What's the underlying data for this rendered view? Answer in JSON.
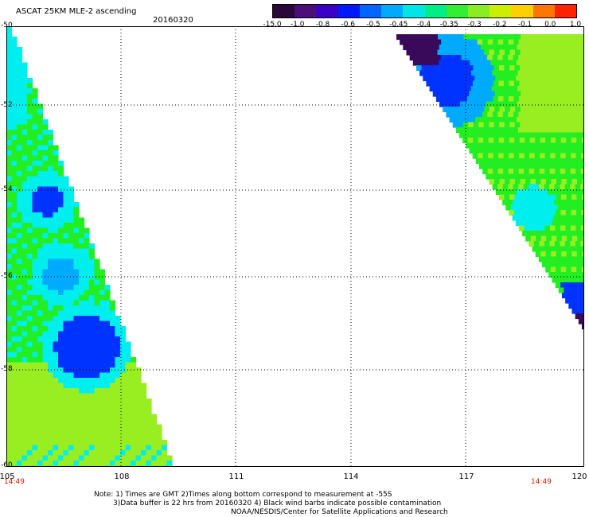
{
  "header": {
    "title": "ASCAT 25KM MLE-2 ascending",
    "date": "20160320"
  },
  "colorbar": {
    "labels": [
      "-15.0",
      "-1.0",
      "-0.8",
      "-0.6",
      "-0.5",
      "-0.45",
      "-0.4",
      "-0.35",
      "-0.3",
      "-0.2",
      "-0.1",
      "0.0",
      "1.0"
    ],
    "colors": [
      "#2a0838",
      "#4b0f7a",
      "#3a00c8",
      "#0018ff",
      "#0066ff",
      "#00aaff",
      "#00e6e6",
      "#00ee88",
      "#33ee33",
      "#88ee22",
      "#ccee00",
      "#ffd000",
      "#ff7700",
      "#ff2200"
    ]
  },
  "axes": {
    "y_labels": [
      "-50",
      "-52",
      "-54",
      "-56",
      "-58",
      "-60"
    ],
    "x_labels": [
      "105",
      "108",
      "111",
      "114",
      "117",
      "120"
    ],
    "time_left": "14:49",
    "time_right": "14:49"
  },
  "swath_colors": {
    "green": "#22ee22",
    "yellowgreen": "#99ee22",
    "cyan": "#00eeee",
    "lightblue": "#00aaff",
    "blue": "#0033ff",
    "darkblue": "#1a00cc",
    "purple": "#3a0a5a"
  },
  "footer": {
    "line1": "Note: 1) Times are GMT 2)Times along bottom correspond to measurement at -55S",
    "line2": "3)Data buffer is 22 hrs from 20160320 4) Black wind barbs indicate possible contamination",
    "line3": "NOAA/NESDIS/Center for Satellite Applications and Research"
  }
}
